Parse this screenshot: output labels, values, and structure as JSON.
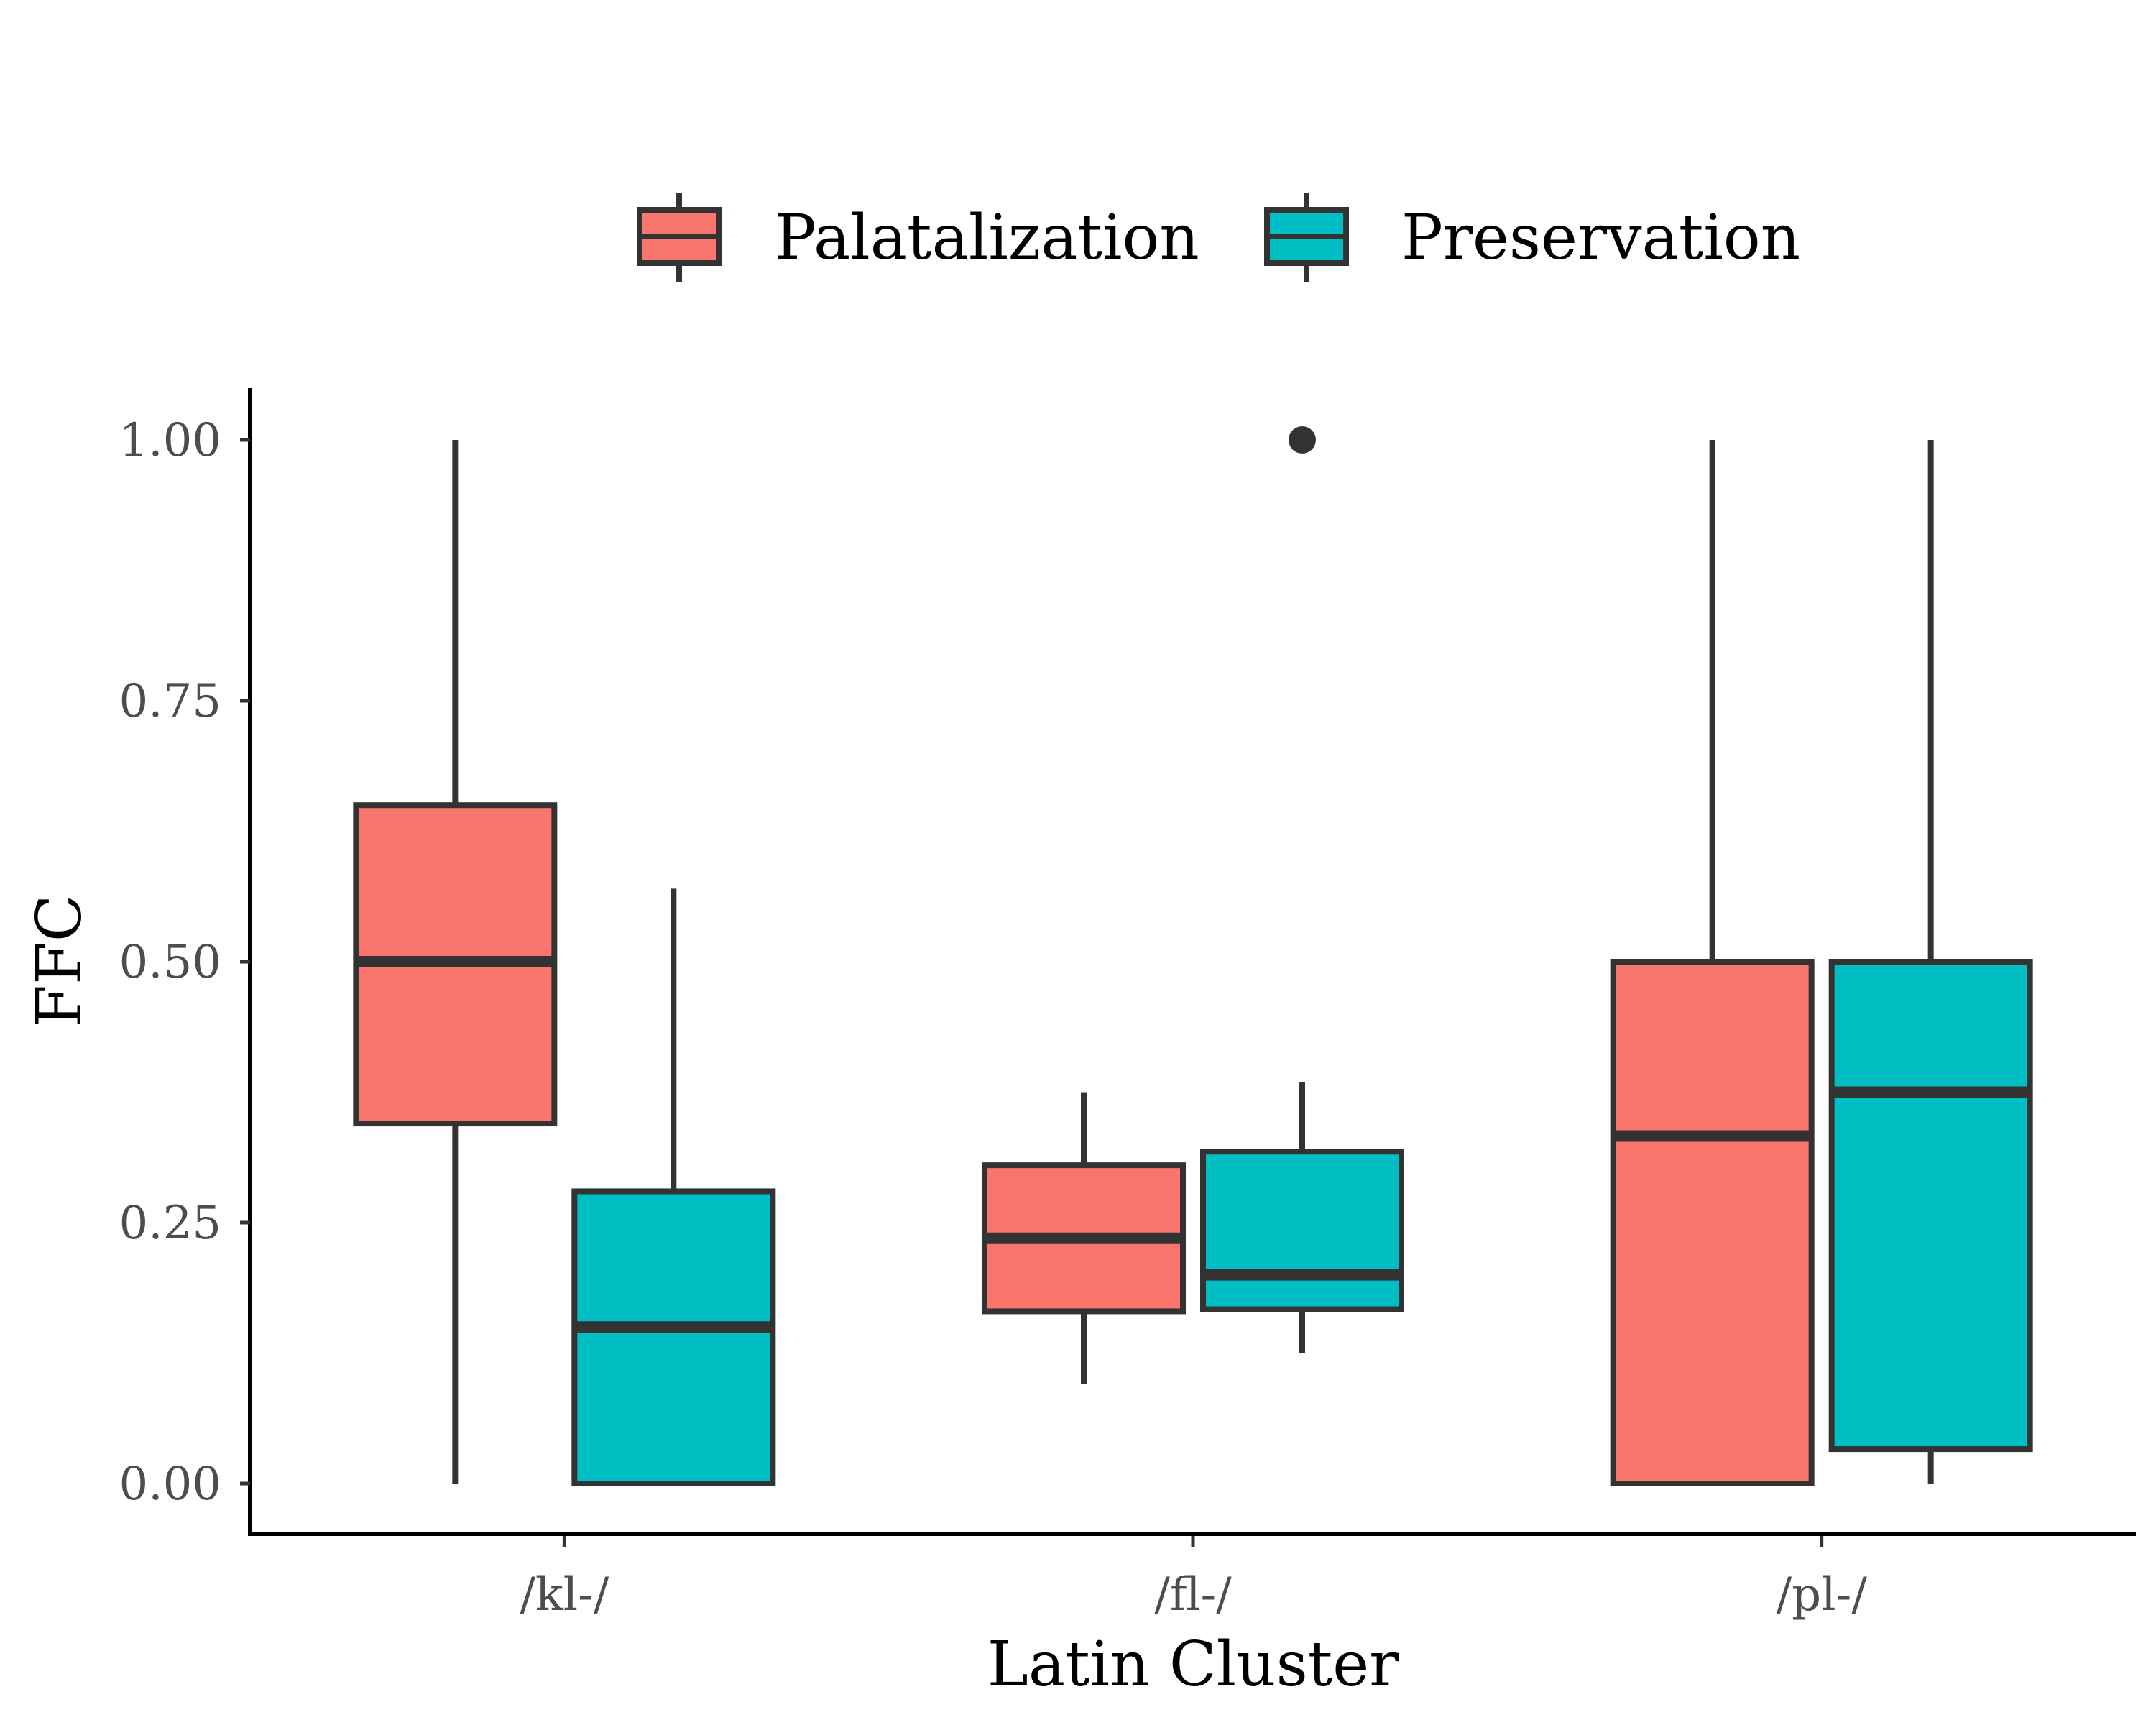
{
  "chart_data": {
    "type": "box",
    "xlabel": "Latin Cluster",
    "ylabel": "FFC",
    "ylim": [
      0,
      1
    ],
    "y_ticks": [
      "0.00",
      "0.25",
      "0.50",
      "0.75",
      "1.00"
    ],
    "y_tick_values": [
      0,
      0.25,
      0.5,
      0.75,
      1.0
    ],
    "categories": [
      "/kl-/",
      "/fl-/",
      "/pl-/"
    ],
    "grid": false,
    "legend_position": "top",
    "series": [
      {
        "name": "Palatalization",
        "color": "#F8766D",
        "boxes": [
          {
            "category": "/kl-/",
            "min": 0.0,
            "q1": 0.345,
            "median": 0.5,
            "q3": 0.65,
            "max": 1.0,
            "outliers": []
          },
          {
            "category": "/fl-/",
            "min": 0.095,
            "q1": 0.165,
            "median": 0.235,
            "q3": 0.305,
            "max": 0.375,
            "outliers": []
          },
          {
            "category": "/pl-/",
            "min": 0.0,
            "q1": 0.0,
            "median": 0.333,
            "q3": 0.5,
            "max": 1.0,
            "outliers": []
          }
        ]
      },
      {
        "name": "Preservation",
        "color": "#00BFC4",
        "boxes": [
          {
            "category": "/kl-/",
            "min": 0.0,
            "q1": 0.0,
            "median": 0.15,
            "q3": 0.28,
            "max": 0.57,
            "outliers": []
          },
          {
            "category": "/fl-/",
            "min": 0.125,
            "q1": 0.167,
            "median": 0.2,
            "q3": 0.318,
            "max": 0.385,
            "outliers": [
              1.0
            ]
          },
          {
            "category": "/pl-/",
            "min": 0.0,
            "q1": 0.033,
            "median": 0.375,
            "q3": 0.5,
            "max": 1.0,
            "outliers": []
          }
        ]
      }
    ]
  }
}
